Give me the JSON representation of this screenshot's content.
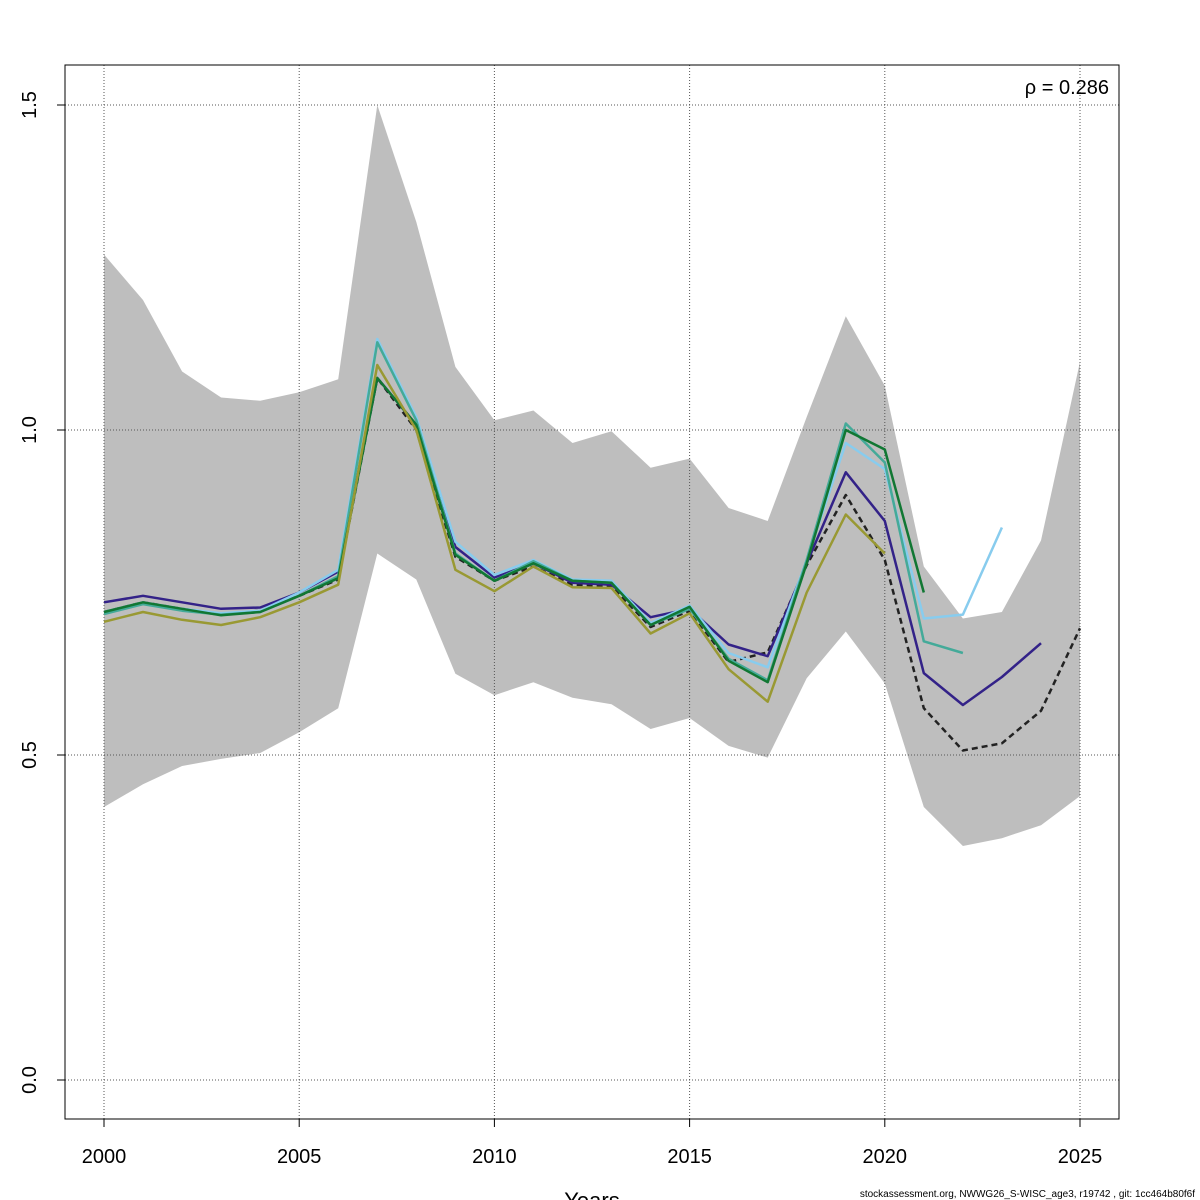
{
  "chart_data": {
    "type": "line",
    "title": "",
    "xlabel": "Years",
    "ylabel": "",
    "xlim": [
      1999,
      2026
    ],
    "ylim": [
      -0.05,
      1.57
    ],
    "x_ticks": [
      2000,
      2005,
      2010,
      2015,
      2020,
      2025
    ],
    "y_ticks": [
      0.0,
      0.5,
      1.0,
      1.5
    ],
    "x_tick_labels": [
      "2000",
      "2005",
      "2010",
      "2015",
      "2020",
      "2025"
    ],
    "y_tick_labels": [
      "0.0",
      "0.5",
      "1.0",
      "1.5"
    ],
    "grid": true,
    "annotation": "ρ = 0.286",
    "confidence_band": {
      "color": "#bebebe",
      "years": [
        2000,
        2001,
        2002,
        2003,
        2004,
        2005,
        2006,
        2007,
        2008,
        2009,
        2010,
        2011,
        2012,
        2013,
        2014,
        2015,
        2016,
        2017,
        2018,
        2019,
        2020,
        2021,
        2022,
        2023,
        2024,
        2025
      ],
      "upper": [
        1.27,
        1.2,
        1.09,
        1.05,
        1.045,
        1.058,
        1.078,
        1.5,
        1.32,
        1.097,
        1.015,
        1.03,
        0.98,
        0.998,
        0.942,
        0.956,
        0.88,
        0.86,
        1.02,
        1.175,
        1.068,
        0.79,
        0.71,
        0.72,
        0.83,
        1.105
      ],
      "lower": [
        0.42,
        0.455,
        0.483,
        0.494,
        0.503,
        0.535,
        0.572,
        0.81,
        0.77,
        0.625,
        0.592,
        0.612,
        0.588,
        0.578,
        0.54,
        0.557,
        0.514,
        0.496,
        0.618,
        0.69,
        0.61,
        0.42,
        0.36,
        0.372,
        0.392,
        0.437
      ]
    },
    "series": [
      {
        "color": "#222222",
        "dashed": true,
        "x": [
          2000,
          2001,
          2002,
          2003,
          2004,
          2005,
          2006,
          2007,
          2008,
          2009,
          2010,
          2011,
          2012,
          2013,
          2014,
          2015,
          2016,
          2017,
          2018,
          2019,
          2020,
          2021,
          2022,
          2023,
          2024,
          2025
        ],
        "values": [
          0.72,
          0.735,
          0.725,
          0.717,
          0.722,
          0.745,
          0.77,
          1.08,
          1.0,
          0.805,
          0.768,
          0.79,
          0.762,
          0.76,
          0.697,
          0.722,
          0.643,
          0.658,
          0.792,
          0.9,
          0.8,
          0.572,
          0.507,
          0.518,
          0.568,
          0.695
        ]
      },
      {
        "color": "#332288",
        "dashed": false,
        "x": [
          2000,
          2001,
          2002,
          2003,
          2004,
          2005,
          2006,
          2007,
          2008,
          2009,
          2010,
          2011,
          2012,
          2013,
          2014,
          2015,
          2016,
          2017,
          2018,
          2019,
          2020,
          2021,
          2022,
          2023,
          2024
        ],
        "values": [
          0.735,
          0.745,
          0.735,
          0.725,
          0.727,
          0.75,
          0.782,
          1.08,
          1.008,
          0.82,
          0.773,
          0.795,
          0.765,
          0.762,
          0.712,
          0.725,
          0.67,
          0.652,
          0.795,
          0.935,
          0.86,
          0.626,
          0.577,
          0.62,
          0.672
        ]
      },
      {
        "color": "#88ccee",
        "dashed": false,
        "x": [
          2000,
          2001,
          2002,
          2003,
          2004,
          2005,
          2006,
          2007,
          2008,
          2009,
          2010,
          2011,
          2012,
          2013,
          2014,
          2015,
          2016,
          2017,
          2018,
          2019,
          2020,
          2021,
          2022,
          2023
        ],
        "values": [
          0.72,
          0.735,
          0.725,
          0.718,
          0.722,
          0.75,
          0.785,
          1.14,
          1.02,
          0.828,
          0.777,
          0.8,
          0.77,
          0.768,
          0.703,
          0.73,
          0.657,
          0.635,
          0.8,
          0.98,
          0.94,
          0.71,
          0.716,
          0.85
        ]
      },
      {
        "color": "#44aa99",
        "dashed": false,
        "x": [
          2000,
          2001,
          2002,
          2003,
          2004,
          2005,
          2006,
          2007,
          2008,
          2009,
          2010,
          2011,
          2012,
          2013,
          2014,
          2015,
          2016,
          2017,
          2018,
          2019,
          2020,
          2021,
          2022
        ],
        "values": [
          0.717,
          0.732,
          0.722,
          0.716,
          0.72,
          0.745,
          0.775,
          1.135,
          1.015,
          0.81,
          0.768,
          0.798,
          0.768,
          0.765,
          0.7,
          0.725,
          0.648,
          0.615,
          0.8,
          1.01,
          0.95,
          0.675,
          0.657
        ]
      },
      {
        "color": "#117733",
        "dashed": false,
        "x": [
          2000,
          2001,
          2002,
          2003,
          2004,
          2005,
          2006,
          2007,
          2008,
          2009,
          2010,
          2011,
          2012,
          2013,
          2014,
          2015,
          2016,
          2017,
          2018,
          2019,
          2020,
          2021
        ],
        "values": [
          0.72,
          0.735,
          0.725,
          0.715,
          0.72,
          0.745,
          0.772,
          1.08,
          1.008,
          0.808,
          0.768,
          0.795,
          0.768,
          0.765,
          0.7,
          0.728,
          0.645,
          0.612,
          0.795,
          1.0,
          0.97,
          0.75
        ]
      },
      {
        "color": "#999933",
        "dashed": false,
        "x": [
          2000,
          2001,
          2002,
          2003,
          2004,
          2005,
          2006,
          2007,
          2008,
          2009,
          2010,
          2011,
          2012,
          2013,
          2014,
          2015,
          2016,
          2017,
          2018,
          2019,
          2020
        ],
        "values": [
          0.705,
          0.72,
          0.708,
          0.7,
          0.712,
          0.735,
          0.762,
          1.1,
          1.0,
          0.785,
          0.752,
          0.79,
          0.758,
          0.757,
          0.687,
          0.718,
          0.632,
          0.582,
          0.75,
          0.87,
          0.81
        ]
      }
    ]
  },
  "footer_text": "stockassessment.org, NWWG26_S-WISC_age3, r19742 , git: 1cc464b80f6f"
}
